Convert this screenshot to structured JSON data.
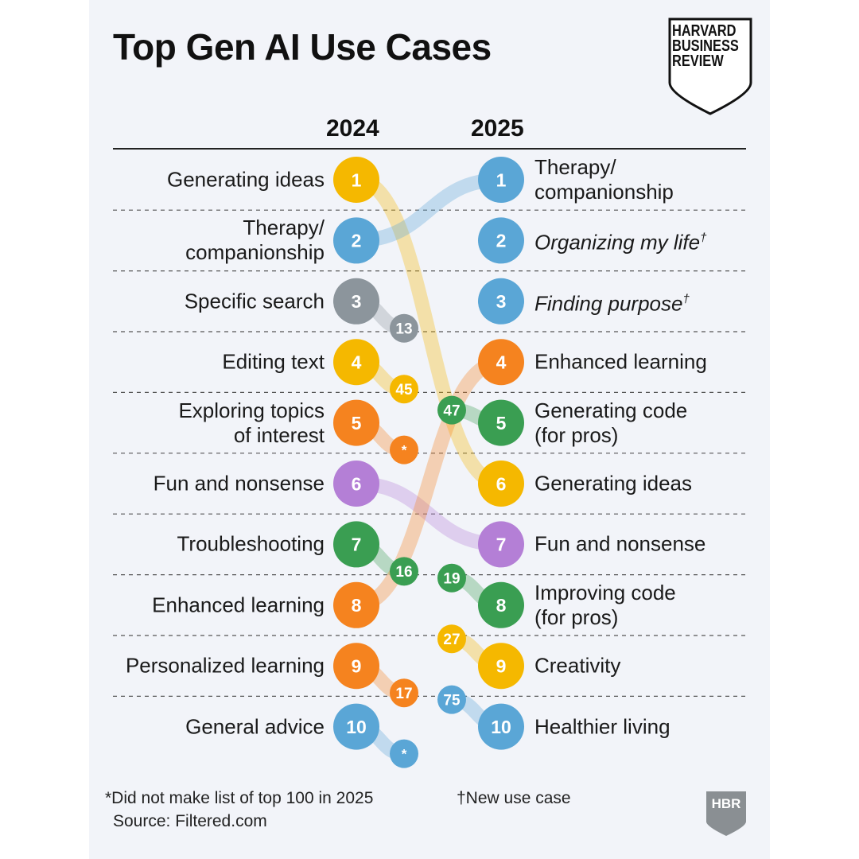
{
  "title": "Top Gen AI Use Cases",
  "logo": {
    "lines": [
      "HARVARD",
      "BUSINESS",
      "REVIEW"
    ],
    "badge": "HBR"
  },
  "chart_data": {
    "type": "bump",
    "columns": [
      "2024",
      "2025"
    ],
    "rows_2024": [
      {
        "rank": "1",
        "label": "Generating ideas",
        "color": "#f5b800",
        "new_rank": "6"
      },
      {
        "rank": "2",
        "label": "Therapy/\ncompanionship",
        "color": "#5aa6d6",
        "new_rank": "1"
      },
      {
        "rank": "3",
        "label": "Specific search",
        "color": "#8c959c",
        "new_rank": "13"
      },
      {
        "rank": "4",
        "label": "Editing text",
        "color": "#f5b800",
        "new_rank": "45"
      },
      {
        "rank": "5",
        "label": "Exploring topics\nof interest",
        "color": "#f5831f",
        "new_rank": "*"
      },
      {
        "rank": "6",
        "label": "Fun and nonsense",
        "color": "#b47fd6",
        "new_rank": "7"
      },
      {
        "rank": "7",
        "label": "Troubleshooting",
        "color": "#3a9e52",
        "new_rank": "16"
      },
      {
        "rank": "8",
        "label": "Enhanced learning",
        "color": "#f5831f",
        "new_rank": "4"
      },
      {
        "rank": "9",
        "label": "Personalized learning",
        "color": "#f5831f",
        "new_rank": "17"
      },
      {
        "rank": "10",
        "label": "General advice",
        "color": "#5aa6d6",
        "new_rank": "*"
      }
    ],
    "rows_2025": [
      {
        "rank": "1",
        "label": "Therapy/\ncompanionship",
        "color": "#5aa6d6",
        "old_rank": "2",
        "new": false
      },
      {
        "rank": "2",
        "label": "Organizing my life",
        "color": "#5aa6d6",
        "old_rank": "",
        "new": true
      },
      {
        "rank": "3",
        "label": "Finding purpose",
        "color": "#5aa6d6",
        "old_rank": "",
        "new": true
      },
      {
        "rank": "4",
        "label": "Enhanced learning",
        "color": "#f5831f",
        "old_rank": "8",
        "new": false
      },
      {
        "rank": "5",
        "label": "Generating code\n(for pros)",
        "color": "#3a9e52",
        "old_rank": "47",
        "new": false
      },
      {
        "rank": "6",
        "label": "Generating ideas",
        "color": "#f5b800",
        "old_rank": "1",
        "new": false
      },
      {
        "rank": "7",
        "label": "Fun and nonsense",
        "color": "#b47fd6",
        "old_rank": "6",
        "new": false
      },
      {
        "rank": "8",
        "label": "Improving code\n(for pros)",
        "color": "#3a9e52",
        "old_rank": "19",
        "new": false
      },
      {
        "rank": "9",
        "label": "Creativity",
        "color": "#f5b800",
        "old_rank": "27",
        "new": false
      },
      {
        "rank": "10",
        "label": "Healthier living",
        "color": "#5aa6d6",
        "old_rank": "75",
        "new": false
      }
    ]
  },
  "footnotes": {
    "not_top100": "*Did not make list of top 100 in 2025",
    "new_case": "†New use case",
    "source": "Source: Filtered.com",
    "dagger": "†"
  }
}
